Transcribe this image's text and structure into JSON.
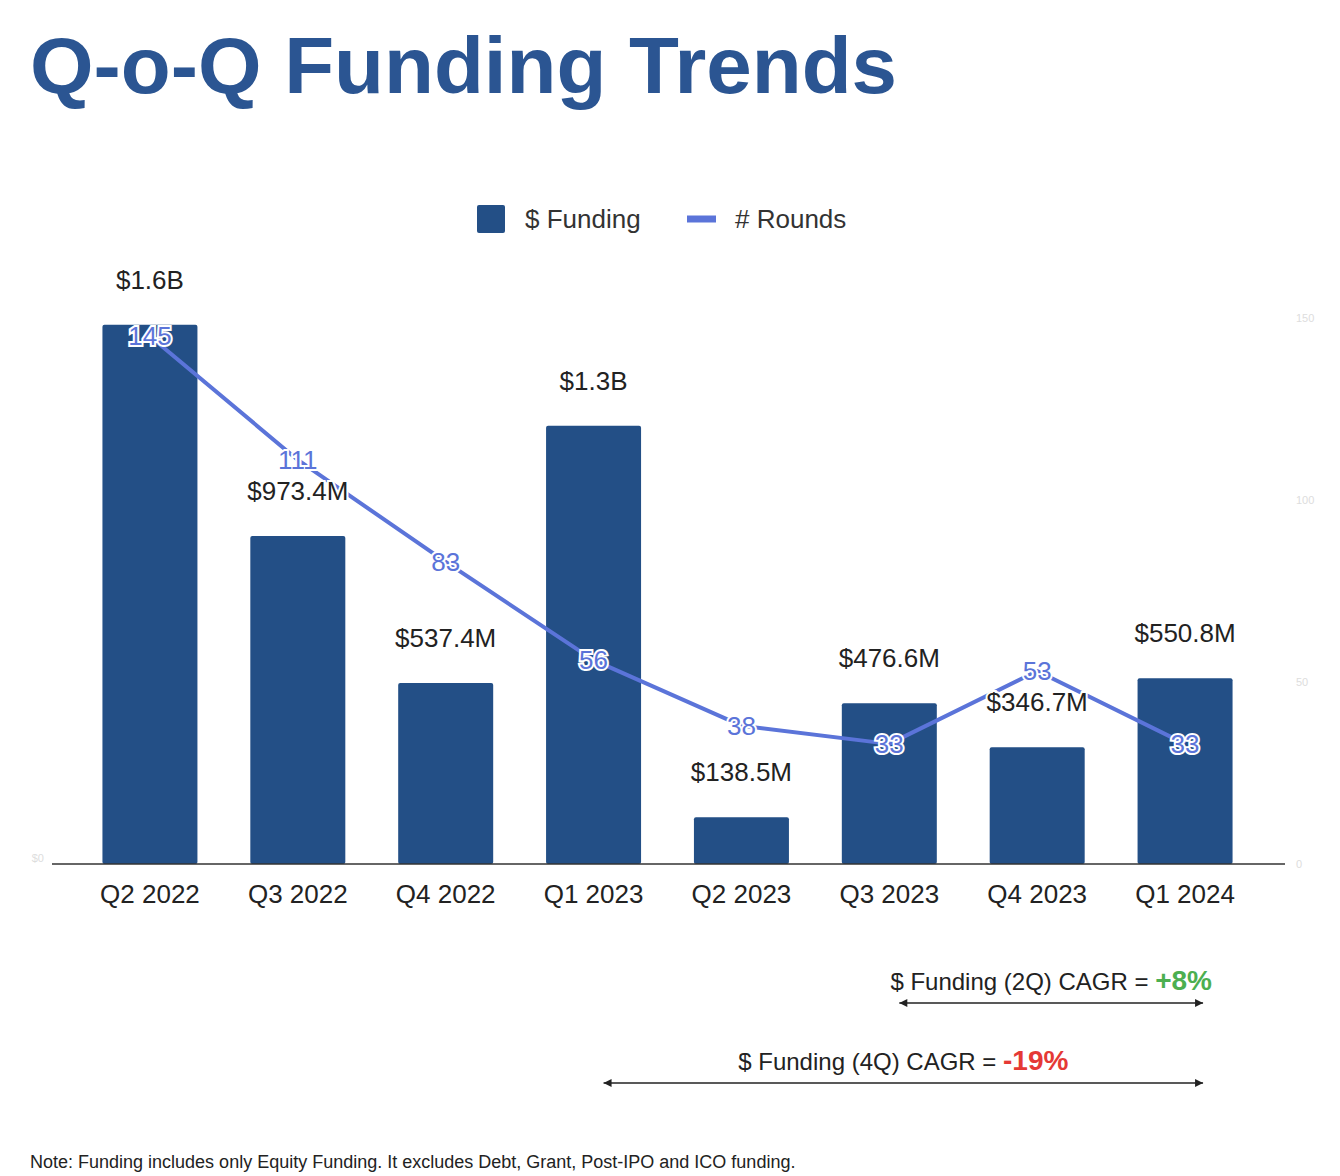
{
  "chart_data": {
    "type": "bar",
    "title": "Q-o-Q Funding Trends",
    "categories": [
      "Q2 2022",
      "Q3 2022",
      "Q4 2022",
      "Q1 2023",
      "Q2 2023",
      "Q3 2023",
      "Q4 2023",
      "Q1 2024"
    ],
    "series": [
      {
        "name": "$ Funding",
        "type": "bar",
        "color": "#234f86",
        "values": [
          1600000000,
          973400000,
          537400000,
          1300000000,
          138500000,
          476600000,
          346700000,
          550800000
        ],
        "value_labels": [
          "$1.6B",
          "$973.4M",
          "$537.4M",
          "$1.3B",
          "$138.5M",
          "$476.6M",
          "$346.7M",
          "$550.8M"
        ]
      },
      {
        "name": "# Rounds",
        "type": "line",
        "color": "#5b74d9",
        "axis": "y2",
        "values": [
          145,
          111,
          83,
          56,
          38,
          33,
          53,
          33
        ]
      }
    ],
    "ylim": [
      0,
      1620000000
    ],
    "yticks": [
      {
        "value": 0,
        "label": "$0"
      }
    ],
    "y2lim": [
      0,
      150
    ],
    "y2ticks": [
      0,
      50,
      100,
      150
    ],
    "data_labels": true,
    "legend": "top",
    "annotations": [
      {
        "label": "$ Funding (2Q) CAGR = ",
        "value": "+8%",
        "color": "#4caf50",
        "from": "Q3 2023",
        "to": "Q1 2024"
      },
      {
        "label": "$ Funding (4Q) CAGR = ",
        "value": "-19%",
        "color": "#e53935",
        "from": "Q1 2023",
        "to": "Q1 2024"
      }
    ],
    "note": "Note: Funding includes only Equity Funding. It excludes Debt, Grant, Post-IPO and ICO funding."
  }
}
